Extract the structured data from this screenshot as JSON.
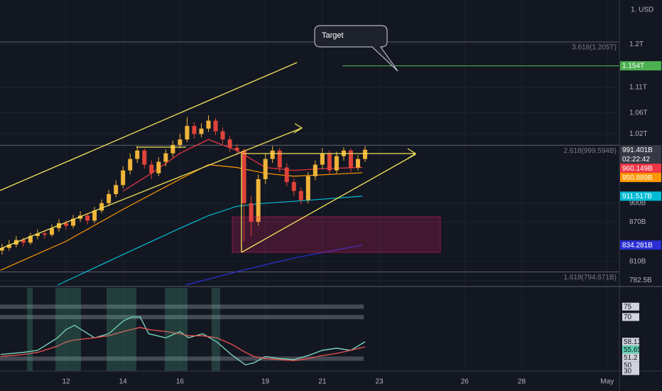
{
  "chart_data": [
    {
      "type": "candlestick",
      "currency": "1. USD",
      "annotation": "Target",
      "countdown": "02:22:42",
      "x": [
        9.75,
        10,
        10.25,
        10.5,
        10.75,
        11,
        11.25,
        11.5,
        11.75,
        12,
        12.25,
        12.5,
        12.75,
        13,
        13.25,
        13.5,
        13.75,
        14,
        14.25,
        14.5,
        14.75,
        15,
        15.25,
        15.5,
        15.75,
        16,
        16.25,
        16.5,
        16.75,
        17,
        17.25,
        17.5,
        17.75,
        18,
        18.25,
        18.5,
        18.75,
        19,
        19.25,
        19.5,
        19.75,
        20,
        20.25,
        20.5,
        20.75,
        21,
        21.25,
        21.5,
        21.75,
        22,
        22.25,
        22.5
      ],
      "ohlc": [
        [
          826,
          836,
          820,
          830
        ],
        [
          830,
          842,
          826,
          835
        ],
        [
          835,
          848,
          831,
          842
        ],
        [
          842,
          846,
          832,
          838
        ],
        [
          838,
          853,
          835,
          848
        ],
        [
          848,
          858,
          843,
          852
        ],
        [
          852,
          857,
          844,
          850
        ],
        [
          850,
          866,
          847,
          860
        ],
        [
          860,
          874,
          855,
          868
        ],
        [
          868,
          872,
          858,
          864
        ],
        [
          864,
          881,
          860,
          875
        ],
        [
          875,
          887,
          870,
          880
        ],
        [
          880,
          884,
          866,
          872
        ],
        [
          872,
          894,
          868,
          888
        ],
        [
          888,
          906,
          884,
          900
        ],
        [
          900,
          922,
          895,
          915
        ],
        [
          915,
          938,
          910,
          930
        ],
        [
          930,
          962,
          925,
          955
        ],
        [
          955,
          985,
          948,
          975
        ],
        [
          975,
          998,
          968,
          990
        ],
        [
          990,
          994,
          958,
          965
        ],
        [
          965,
          972,
          940,
          950
        ],
        [
          950,
          978,
          945,
          970
        ],
        [
          970,
          992,
          962,
          985
        ],
        [
          985,
          1008,
          978,
          1000
        ],
        [
          1000,
          1020,
          994,
          1010
        ],
        [
          1010,
          1052,
          1005,
          1035
        ],
        [
          1035,
          1042,
          1012,
          1020
        ],
        [
          1020,
          1040,
          1014,
          1030
        ],
        [
          1030,
          1055,
          1024,
          1045
        ],
        [
          1045,
          1050,
          1018,
          1025
        ],
        [
          1025,
          1032,
          1002,
          1010
        ],
        [
          1010,
          1016,
          988,
          995
        ],
        [
          995,
          1002,
          982,
          990
        ],
        [
          990,
          994,
          840,
          900
        ],
        [
          900,
          912,
          848,
          870
        ],
        [
          870,
          948,
          864,
          940
        ],
        [
          940,
          984,
          932,
          975
        ],
        [
          975,
          998,
          968,
          990
        ],
        [
          990,
          995,
          952,
          960
        ],
        [
          960,
          968,
          928,
          935
        ],
        [
          935,
          942,
          912,
          920
        ],
        [
          920,
          926,
          898,
          905
        ],
        [
          905,
          952,
          900,
          945
        ],
        [
          945,
          972,
          938,
          965
        ],
        [
          965,
          994,
          958,
          985
        ],
        [
          985,
          990,
          948,
          955
        ],
        [
          955,
          988,
          950,
          980
        ],
        [
          980,
          996,
          972,
          990
        ],
        [
          990,
          994,
          952,
          960
        ],
        [
          960,
          982,
          955,
          975
        ],
        [
          975,
          998,
          970,
          991.401
        ]
      ],
      "up_color": "#f0b43a",
      "down_color": "#e0433a",
      "lines": [
        {
          "color": "#f23645",
          "x": [
            14,
            15,
            16,
            17,
            18,
            19,
            20,
            21,
            22.4
          ],
          "values": [
            920,
            950,
            985,
            1010,
            990,
            960,
            955,
            958,
            960.149
          ]
        },
        {
          "color": "#ff9800",
          "x": [
            9.7,
            12,
            14,
            16,
            17,
            18,
            19,
            20,
            22.4
          ],
          "values": [
            797,
            840,
            890,
            940,
            965,
            960,
            950,
            945,
            950.889
          ]
        },
        {
          "color": "#00bcd4",
          "x": [
            11.7,
            14,
            16,
            17,
            18,
            19,
            20,
            22.4
          ],
          "values": [
            776,
            820,
            860,
            880,
            895,
            900,
            903,
            911.517
          ]
        },
        {
          "color": "#2a2fd6",
          "x": [
            16.2,
            18,
            20,
            22.4
          ],
          "values": [
            776,
            795,
            815,
            834.281
          ]
        }
      ],
      "target": {
        "value": 1154,
        "color": "#4caf50",
        "from": 21.7
      },
      "fib_levels": [
        {
          "value": 1205,
          "label": "3.618(1.205T)"
        },
        {
          "value": 999.594,
          "label": "2.618(999.594B)"
        },
        {
          "value": 794.671,
          "label": "1.618(794.671B)"
        }
      ],
      "price_tags": [
        {
          "value": 1154,
          "label": "1.154T",
          "color": "#4caf50"
        },
        {
          "value": 991.401,
          "label": "991.401B",
          "color": "#363a45"
        },
        {
          "value": 960.149,
          "label": "960.149B",
          "color": "#f23645"
        },
        {
          "value": 950.889,
          "label": "950.889B",
          "color": "#ff9800"
        },
        {
          "value": 911.517,
          "label": "911.517B",
          "color": "#00bcd4"
        },
        {
          "value": 834.281,
          "label": "834.281B",
          "color": "#2a2fd6"
        }
      ],
      "xlim": [
        9.68,
        31.43
      ],
      "xticks": [
        12,
        14,
        16,
        19,
        21,
        23,
        26,
        28,
        {
          "value": 31,
          "label": "May"
        }
      ],
      "ylim": [
        775,
        1300
      ],
      "log_scale": true,
      "yticks": [
        {
          "value": 1200,
          "label": "1.2T"
        },
        {
          "value": 1110,
          "label": "1.11T"
        },
        {
          "value": 1060,
          "label": "1.06T"
        },
        {
          "value": 1020,
          "label": "1.02T"
        },
        {
          "value": 900,
          "label": "900B"
        },
        {
          "value": 870,
          "label": "870B"
        },
        {
          "value": 810,
          "label": "810B"
        },
        {
          "value": 782.5,
          "label": "782.5B"
        }
      ]
    },
    {
      "type": "line",
      "x": [
        9.7,
        10.5,
        11,
        11.7,
        12,
        12.3,
        13,
        13.5,
        14,
        14.3,
        14.6,
        14.9,
        15.5,
        16,
        16.3,
        16.8,
        17.3,
        17.8,
        18.3,
        18.6,
        19,
        19.5,
        20,
        20.5,
        21,
        21.5,
        22,
        22.5
      ],
      "series": [
        {
          "color": "#7fe0c4",
          "values": [
            52,
            53,
            54,
            60,
            64,
            66,
            60,
            62,
            68,
            70,
            70,
            62,
            60,
            63,
            60,
            62,
            58,
            52,
            47,
            48,
            51,
            50,
            49.5,
            51.5,
            54,
            55,
            54,
            58.13
          ]
        },
        {
          "color": "#ef5350",
          "values": [
            51,
            52,
            53,
            56,
            58,
            59,
            60,
            61,
            63,
            64,
            65,
            64,
            63,
            62,
            61,
            61,
            60,
            57,
            53,
            51,
            50,
            49.5,
            49,
            50,
            51.5,
            52.5,
            54,
            55.65
          ]
        }
      ],
      "tags": [
        {
          "value": 58.13,
          "color": "#d1d4dc"
        },
        {
          "value": 55.65,
          "color": "#5fd3b3"
        },
        {
          "value": 51.2,
          "color": "#d1d4dc"
        }
      ],
      "ylim": [
        44,
        84
      ],
      "yticks": [
        75,
        70,
        50,
        30
      ]
    }
  ]
}
